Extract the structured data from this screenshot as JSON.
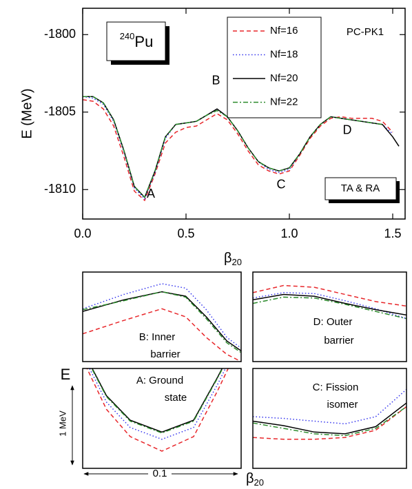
{
  "chart_data": [
    {
      "type": "line",
      "x_label": "β",
      "x_label_sub": "20",
      "y_label": "E (MeV)",
      "xlim": [
        0,
        1.56
      ],
      "ylim": [
        -1811.9,
        -1798.3
      ],
      "xticks": [
        {
          "value": 0,
          "label": "0.0"
        },
        0.5,
        {
          "value": 1,
          "label": "1.0"
        },
        1.5
      ],
      "yticks": [
        -1810,
        -1805,
        -1800
      ],
      "nucleus_mass": "240",
      "nucleus": "Pu",
      "model": "PC-PK1",
      "method": "TA & RA",
      "point_labels": [
        {
          "text": "A",
          "x": 0.33,
          "y": -1810.3
        },
        {
          "text": "B",
          "x": 0.645,
          "y": -1803.0
        },
        {
          "text": "C",
          "x": 0.96,
          "y": -1809.7
        },
        {
          "text": "D",
          "x": 1.28,
          "y": -1806.2
        }
      ],
      "legend": "top-center",
      "x": [
        0,
        0.05,
        0.1,
        0.15,
        0.2,
        0.25,
        0.3,
        0.35,
        0.4,
        0.45,
        0.5,
        0.55,
        0.6,
        0.65,
        0.7,
        0.75,
        0.8,
        0.85,
        0.9,
        0.95,
        1,
        1.05,
        1.1,
        1.15,
        1.2,
        1.25,
        1.3,
        1.35,
        1.4,
        1.45,
        1.5,
        1.53
      ],
      "series": [
        {
          "name": "Nf=16",
          "color": "#e8262a",
          "dash": "6,4",
          "values": [
            -1804.2,
            -1804.3,
            -1804.8,
            -1805.9,
            -1807.9,
            -1810.1,
            -1810.7,
            -1809.0,
            -1807.0,
            -1806.3,
            -1806.0,
            -1805.9,
            -1805.5,
            -1805.1,
            -1805.5,
            -1806.4,
            -1807.5,
            -1808.4,
            -1808.8,
            -1809.0,
            -1808.8,
            -1807.8,
            -1806.7,
            -1805.9,
            -1805.4,
            -1805.3,
            -1805.4,
            -1805.4,
            -1805.4,
            -1805.6,
            -1806.3,
            null
          ]
        },
        {
          "name": "Nf=18",
          "color": "#3333ee",
          "dash": "1.5,3",
          "values": [
            -1804.0,
            -1804.1,
            -1804.5,
            -1805.6,
            -1807.6,
            -1809.9,
            -1810.6,
            -1808.9,
            -1806.7,
            -1805.8,
            -1805.7,
            -1805.6,
            -1805.2,
            -1804.8,
            -1805.3,
            -1806.2,
            -1807.3,
            -1808.2,
            -1808.7,
            -1808.9,
            -1808.7,
            -1807.7,
            -1806.6,
            -1805.8,
            -1805.3,
            -1805.4,
            -1805.5,
            -1805.6,
            -1805.7,
            -1805.8,
            -1806.4,
            null
          ]
        },
        {
          "name": "Nf=20",
          "color": "#000000",
          "dash": "none",
          "values": [
            -1804.0,
            -1804.0,
            -1804.4,
            -1805.5,
            -1807.5,
            -1809.8,
            -1810.5,
            -1808.8,
            -1806.6,
            -1805.8,
            -1805.7,
            -1805.6,
            -1805.2,
            -1804.8,
            -1805.3,
            -1806.2,
            -1807.3,
            -1808.2,
            -1808.6,
            -1808.8,
            -1808.6,
            -1807.7,
            -1806.6,
            -1805.8,
            -1805.3,
            -1805.4,
            -1805.5,
            -1805.6,
            -1805.7,
            -1805.8,
            -1806.6,
            -1807.2
          ]
        },
        {
          "name": "Nf=22",
          "color": "#2a8a2a",
          "dash": "7,3,2,3",
          "values": [
            -1804.0,
            -1804.0,
            -1804.4,
            -1805.5,
            -1807.5,
            -1809.8,
            -1810.5,
            -1808.8,
            -1806.6,
            -1805.8,
            -1805.7,
            -1805.6,
            -1805.2,
            -1804.9,
            -1805.3,
            -1806.2,
            -1807.3,
            -1808.2,
            -1808.6,
            -1808.8,
            -1808.6,
            -1807.7,
            -1806.6,
            -1805.8,
            -1805.3,
            -1805.4,
            -1805.5,
            -1805.6,
            -1805.7,
            -1805.8,
            null,
            null
          ]
        }
      ]
    },
    {
      "type": "line",
      "label": [
        "B: Inner",
        "barrier"
      ],
      "xlim": [
        0.6,
        0.7
      ],
      "ylim": [
        -1805.6,
        -1804.6
      ],
      "x": [
        0.6,
        0.626,
        0.65,
        0.665,
        0.678,
        0.691,
        0.7
      ],
      "series": [
        {
          "name": "Nf=16",
          "color": "#e8262a",
          "dash": "6,4",
          "values": [
            -1805.29,
            -1805.14,
            -1805.01,
            -1805.1,
            -1805.33,
            -1805.52,
            -1805.6
          ]
        },
        {
          "name": "Nf=18",
          "color": "#3333ee",
          "dash": "1.5,3",
          "values": [
            -1805.01,
            -1804.85,
            -1804.73,
            -1804.78,
            -1805.02,
            -1805.33,
            -1805.45
          ]
        },
        {
          "name": "Nf=20",
          "color": "#000000",
          "dash": "none",
          "values": [
            -1805.04,
            -1804.91,
            -1804.82,
            -1804.87,
            -1805.1,
            -1805.37,
            -1805.48
          ]
        },
        {
          "name": "Nf=22",
          "color": "#2a8a2a",
          "dash": "7,3,2,3",
          "values": [
            -1805.02,
            -1804.92,
            -1804.82,
            -1804.88,
            -1805.12,
            -1805.39,
            -1805.5
          ]
        }
      ]
    },
    {
      "type": "line",
      "label": [
        "D: Outer",
        "barrier"
      ],
      "xlim": [
        1.15,
        1.25
      ],
      "ylim": [
        -1805.7,
        -1804.7
      ],
      "x": [
        1.15,
        1.17,
        1.19,
        1.21,
        1.23,
        1.25
      ],
      "series": [
        {
          "name": "Nf=16",
          "color": "#e8262a",
          "dash": "6,4",
          "values": [
            -1804.93,
            -1804.85,
            -1804.87,
            -1804.95,
            -1805.03,
            -1805.08
          ]
        },
        {
          "name": "Nf=18",
          "color": "#3333ee",
          "dash": "1.5,3",
          "values": [
            -1804.99,
            -1804.93,
            -1804.94,
            -1805.02,
            -1805.11,
            -1805.22
          ]
        },
        {
          "name": "Nf=20",
          "color": "#000000",
          "dash": "none",
          "values": [
            -1805.01,
            -1804.95,
            -1804.97,
            -1805.05,
            -1805.12,
            -1805.18
          ]
        },
        {
          "name": "Nf=22",
          "color": "#2a8a2a",
          "dash": "7,3,2,3",
          "values": [
            -1805.05,
            -1804.98,
            -1804.99,
            -1805.06,
            -1805.14,
            -1805.22
          ]
        }
      ]
    },
    {
      "type": "line",
      "label": [
        "A: Ground",
        "state"
      ],
      "xlim": [
        0.23,
        0.33
      ],
      "ylim": [
        -1811.0,
        -1809.9
      ],
      "x": [
        0.23,
        0.245,
        0.26,
        0.28,
        0.3,
        0.315,
        0.33
      ],
      "series": [
        {
          "name": "Nf=16",
          "color": "#e8262a",
          "dash": "6,4",
          "values": [
            -1809.8,
            -1810.35,
            -1810.65,
            -1810.81,
            -1810.65,
            -1810.15,
            -1809.6
          ]
        },
        {
          "name": "Nf=18",
          "color": "#3333ee",
          "dash": "1.5,3",
          "values": [
            -1809.75,
            -1810.27,
            -1810.55,
            -1810.68,
            -1810.55,
            -1810.08,
            -1809.55
          ]
        },
        {
          "name": "Nf=20",
          "color": "#000000",
          "dash": "none",
          "values": [
            -1809.7,
            -1810.2,
            -1810.47,
            -1810.6,
            -1810.47,
            -1810.0,
            -1809.5
          ]
        },
        {
          "name": "Nf=22",
          "color": "#2a8a2a",
          "dash": "7,3,2,3",
          "values": [
            -1809.71,
            -1810.21,
            -1810.48,
            -1810.61,
            -1810.48,
            -1810.01,
            -1809.51
          ]
        }
      ]
    },
    {
      "type": "line",
      "label": [
        "C: Fission",
        "isomer"
      ],
      "xlim": [
        0.9,
        1.0
      ],
      "ylim": [
        -1809.3,
        -1808.2
      ],
      "x": [
        0.9,
        0.92,
        0.94,
        0.96,
        0.98,
        1.0
      ],
      "series": [
        {
          "name": "Nf=16",
          "color": "#e8262a",
          "dash": "6,4",
          "values": [
            -1808.96,
            -1808.98,
            -1808.98,
            -1808.96,
            -1808.88,
            -1808.62
          ]
        },
        {
          "name": "Nf=18",
          "color": "#3333ee",
          "dash": "1.5,3",
          "values": [
            -1808.73,
            -1808.75,
            -1808.78,
            -1808.81,
            -1808.73,
            -1808.43
          ]
        },
        {
          "name": "Nf=20",
          "color": "#000000",
          "dash": "none",
          "values": [
            -1808.78,
            -1808.83,
            -1808.9,
            -1808.92,
            -1808.84,
            -1808.58
          ]
        },
        {
          "name": "Nf=22",
          "color": "#2a8a2a",
          "dash": "7,3,2,3",
          "values": [
            -1808.8,
            -1808.86,
            -1808.92,
            -1808.94,
            -1808.86,
            -1808.62
          ]
        }
      ]
    }
  ],
  "inset_axes": {
    "y_label": "E",
    "y_scale": "1 MeV",
    "x_scale": "0.1",
    "x_label": "β",
    "x_label_sub": "20"
  }
}
